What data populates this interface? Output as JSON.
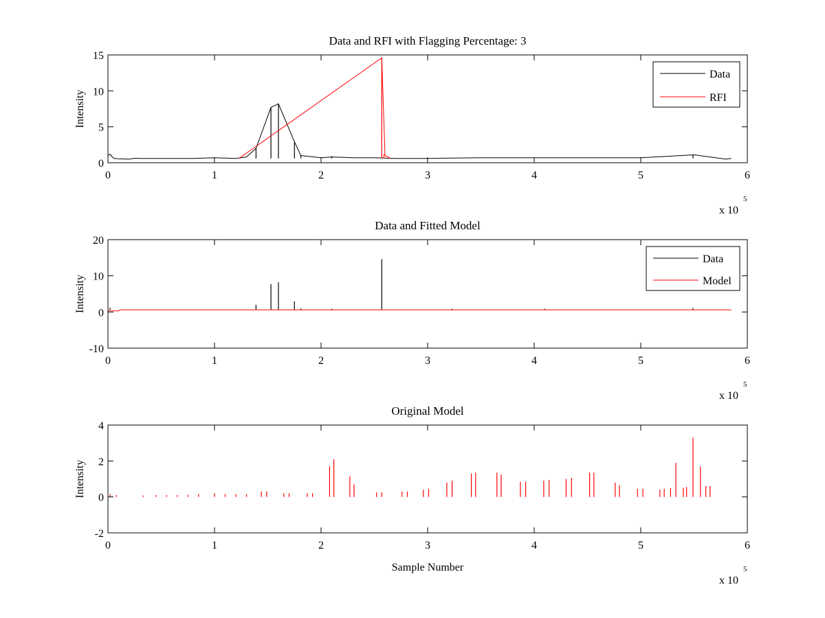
{
  "chart_data": [
    {
      "type": "line",
      "title": "Data and RFI with Flagging Percentage: 3",
      "xlabel": "",
      "ylabel": "Intensity",
      "xlim": [
        0,
        6
      ],
      "ylim": [
        0,
        15
      ],
      "xticks": [
        "0",
        "1",
        "2",
        "3",
        "4",
        "5",
        "6"
      ],
      "yticks": [
        "0",
        "5",
        "10",
        "15"
      ],
      "x_exponent": {
        "base": "x 10",
        "power": "5"
      },
      "legend": {
        "position": "top-right",
        "entries": [
          "Data",
          "RFI"
        ]
      },
      "grid": false,
      "baseline": 0.6,
      "series": [
        {
          "name": "Data",
          "color": "#000000",
          "x": [
            0.0,
            0.02,
            0.04,
            0.06,
            0.1,
            0.2,
            0.25,
            0.3,
            0.5,
            0.8,
            1.0,
            1.2,
            1.3,
            1.39,
            1.53,
            1.6,
            1.75,
            1.81,
            2.0,
            2.1,
            2.3,
            2.5,
            2.7,
            3.0,
            3.5,
            4.0,
            4.5,
            5.0,
            5.5,
            5.8,
            5.85
          ],
          "y": [
            1.0,
            1.2,
            0.8,
            0.6,
            0.55,
            0.5,
            0.62,
            0.6,
            0.6,
            0.6,
            0.7,
            0.6,
            0.8,
            2.0,
            7.7,
            8.2,
            2.9,
            1.0,
            0.7,
            0.8,
            0.7,
            0.7,
            0.6,
            0.6,
            0.7,
            0.7,
            0.7,
            0.7,
            1.1,
            0.5,
            0.6
          ],
          "spikes": [
            [
              1.39,
              2.0
            ],
            [
              1.53,
              7.7
            ],
            [
              1.6,
              8.2
            ],
            [
              1.75,
              2.9
            ],
            [
              1.81,
              1.0
            ],
            [
              2.1,
              0.9
            ],
            [
              5.49,
              1.1
            ]
          ]
        },
        {
          "name": "RFI",
          "color": "#ff0000",
          "x": [
            1.23,
            2.57,
            2.6,
            2.65
          ],
          "y": [
            0.6,
            14.6,
            1.0,
            0.6
          ],
          "spikes": [
            [
              2.57,
              14.6
            ],
            [
              2.59,
              1.2
            ]
          ]
        }
      ]
    },
    {
      "type": "line",
      "title": "Data and Fitted Model",
      "xlabel": "",
      "ylabel": "Intensity",
      "xlim": [
        0,
        6
      ],
      "ylim": [
        -10,
        20
      ],
      "xticks": [
        "0",
        "1",
        "2",
        "3",
        "4",
        "5",
        "6"
      ],
      "yticks": [
        "-10",
        "0",
        "10",
        "20"
      ],
      "x_exponent": {
        "base": "x 10",
        "power": "5"
      },
      "legend": {
        "position": "top-right",
        "entries": [
          "Data",
          "Model"
        ]
      },
      "grid": false,
      "baseline": 0.6,
      "series": [
        {
          "name": "Data",
          "color": "#000000",
          "spikes": [
            [
              0.02,
              1.2
            ],
            [
              1.39,
              2.0
            ],
            [
              1.53,
              7.7
            ],
            [
              1.6,
              8.2
            ],
            [
              1.75,
              2.9
            ],
            [
              1.81,
              1.0
            ],
            [
              2.1,
              0.9
            ],
            [
              2.57,
              14.6
            ],
            [
              3.23,
              0.9
            ],
            [
              4.1,
              0.9
            ],
            [
              5.49,
              1.1
            ]
          ]
        },
        {
          "name": "Model",
          "color": "#ff0000",
          "x": [
            0.0,
            0.01,
            0.1,
            0.11,
            5.85
          ],
          "y": [
            0.6,
            0.3,
            0.3,
            0.6,
            0.6
          ]
        }
      ]
    },
    {
      "type": "line",
      "title": "Original Model",
      "xlabel": "Sample Number",
      "ylabel": "Intensity",
      "xlim": [
        0,
        6
      ],
      "ylim": [
        -2,
        4
      ],
      "xticks": [
        "0",
        "1",
        "2",
        "3",
        "4",
        "5",
        "6"
      ],
      "yticks": [
        "-2",
        "0",
        "2",
        "4"
      ],
      "x_exponent": {
        "base": "x 10",
        "power": "5"
      },
      "legend": null,
      "grid": false,
      "baseline": 0.0,
      "series": [
        {
          "color": "#ff0000",
          "spikes": [
            [
              0.02,
              0.15
            ],
            [
              0.08,
              0.1
            ],
            [
              0.33,
              0.08
            ],
            [
              0.45,
              0.1
            ],
            [
              0.55,
              0.1
            ],
            [
              0.65,
              0.1
            ],
            [
              0.75,
              0.12
            ],
            [
              0.85,
              0.15
            ],
            [
              1.0,
              0.2
            ],
            [
              1.1,
              0.15
            ],
            [
              1.2,
              0.15
            ],
            [
              1.3,
              0.15
            ],
            [
              1.44,
              0.3
            ],
            [
              1.49,
              0.3
            ],
            [
              1.65,
              0.2
            ],
            [
              1.7,
              0.2
            ],
            [
              1.87,
              0.2
            ],
            [
              1.92,
              0.2
            ],
            [
              2.08,
              1.7
            ],
            [
              2.12,
              2.1
            ],
            [
              2.27,
              1.15
            ],
            [
              2.31,
              0.7
            ],
            [
              2.52,
              0.25
            ],
            [
              2.57,
              0.25
            ],
            [
              2.76,
              0.3
            ],
            [
              2.81,
              0.3
            ],
            [
              2.96,
              0.4
            ],
            [
              3.01,
              0.45
            ],
            [
              3.18,
              0.8
            ],
            [
              3.23,
              0.9
            ],
            [
              3.41,
              1.3
            ],
            [
              3.45,
              1.35
            ],
            [
              3.65,
              1.35
            ],
            [
              3.69,
              1.25
            ],
            [
              3.87,
              0.85
            ],
            [
              3.92,
              0.85
            ],
            [
              4.09,
              0.9
            ],
            [
              4.14,
              0.95
            ],
            [
              4.3,
              1.0
            ],
            [
              4.35,
              1.05
            ],
            [
              4.52,
              1.35
            ],
            [
              4.56,
              1.35
            ],
            [
              4.76,
              0.8
            ],
            [
              4.8,
              0.65
            ],
            [
              4.97,
              0.45
            ],
            [
              5.02,
              0.45
            ],
            [
              5.18,
              0.4
            ],
            [
              5.22,
              0.45
            ],
            [
              5.28,
              0.5
            ],
            [
              5.33,
              1.9
            ],
            [
              5.4,
              0.5
            ],
            [
              5.43,
              0.55
            ],
            [
              5.49,
              3.3
            ],
            [
              5.56,
              1.7
            ],
            [
              5.61,
              0.6
            ],
            [
              5.65,
              0.6
            ]
          ]
        }
      ]
    }
  ]
}
